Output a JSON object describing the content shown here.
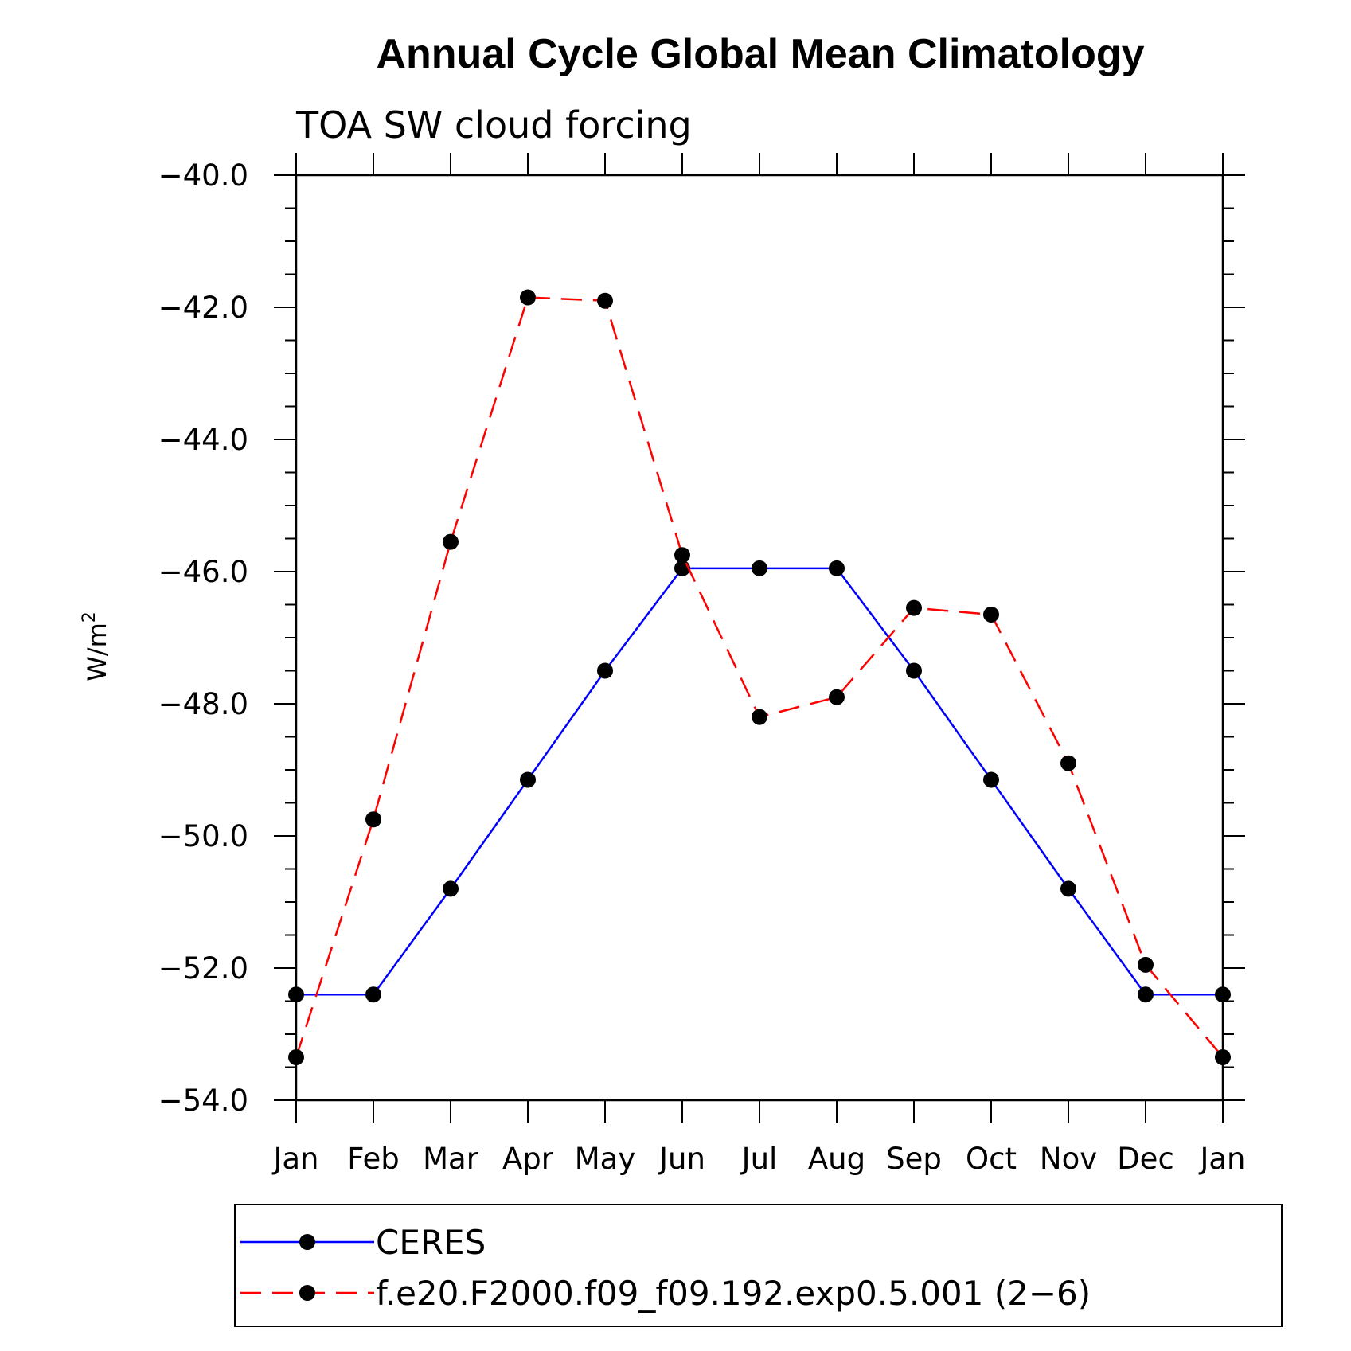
{
  "chart_data": {
    "type": "line",
    "title": "Annual Cycle Global Mean Climatology",
    "subtitle": "TOA SW cloud forcing",
    "ylabel": "W/m",
    "ylabel_superscript": "2",
    "xlabel": "",
    "categories": [
      "Jan",
      "Feb",
      "Mar",
      "Apr",
      "May",
      "Jun",
      "Jul",
      "Aug",
      "Sep",
      "Oct",
      "Nov",
      "Dec",
      "Jan"
    ],
    "ylim": [
      -54.0,
      -40.0
    ],
    "yticks": [
      "−40.0",
      "−42.0",
      "−44.0",
      "−46.0",
      "−48.0",
      "−50.0",
      "−52.0",
      "−54.0"
    ],
    "ytick_values": [
      -40,
      -42,
      -44,
      -46,
      -48,
      -50,
      -52,
      -54
    ],
    "grid": false,
    "legend_position": "bottom",
    "series": [
      {
        "name": "CERES",
        "color": "#0000ff",
        "dash": "solid",
        "marker": "filled-circle",
        "values": [
          -52.4,
          -52.4,
          -50.8,
          -49.15,
          -47.5,
          -45.95,
          -45.95,
          -45.95,
          -47.5,
          -49.15,
          -50.8,
          -52.4,
          -52.4
        ]
      },
      {
        "name": "f.e20.F2000.f09_f09.192.exp0.5.001 (2−6)",
        "color": "#ff0000",
        "dash": "dashed",
        "marker": "filled-circle",
        "values": [
          -53.35,
          -49.75,
          -45.55,
          -41.85,
          -41.9,
          -45.75,
          -48.2,
          -47.9,
          -46.55,
          -46.65,
          -48.9,
          -51.95,
          -53.35
        ]
      }
    ]
  }
}
